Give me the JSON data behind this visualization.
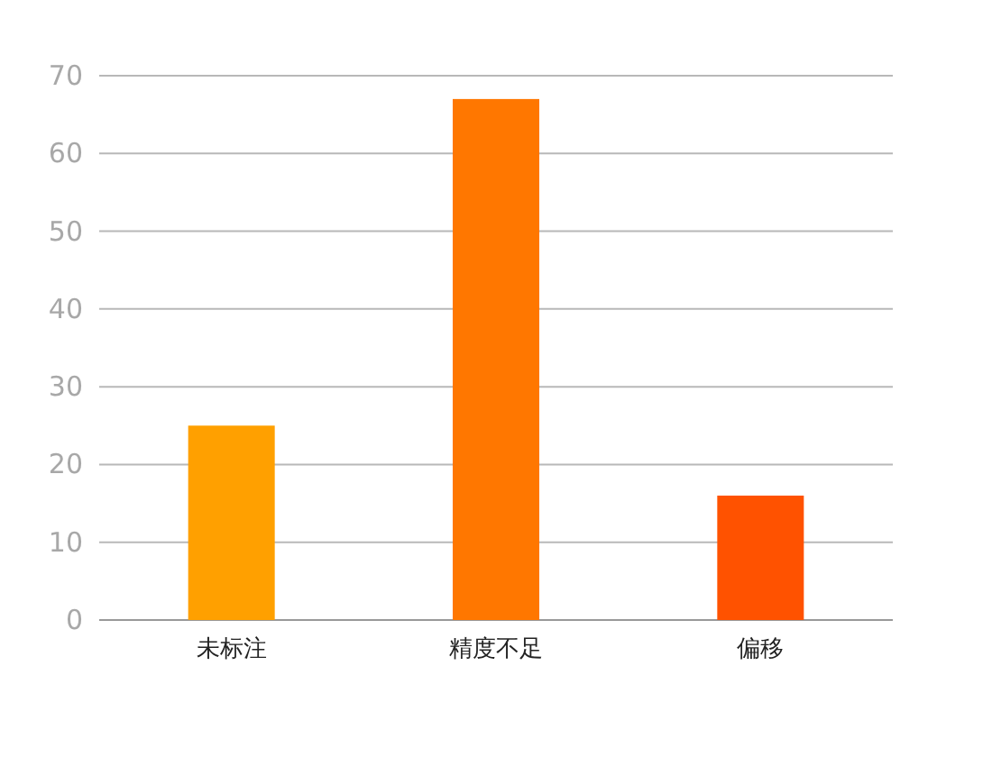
{
  "chart_data": {
    "type": "bar",
    "categories": [
      "未标注",
      "精度不足",
      "偏移"
    ],
    "values": [
      25,
      67,
      16
    ],
    "colors": [
      "#ffa000",
      "#ff7700",
      "#ff5200"
    ],
    "ylim": [
      0,
      70
    ],
    "yticks": [
      0,
      10,
      20,
      30,
      40,
      50,
      60,
      70
    ],
    "grid": "y"
  }
}
